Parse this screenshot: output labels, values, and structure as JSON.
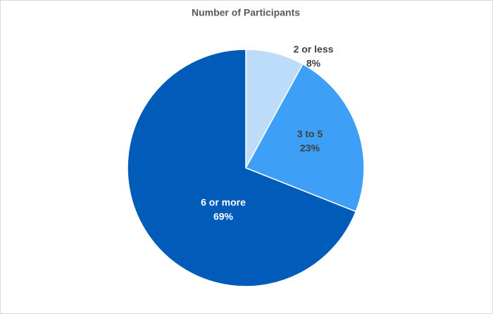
{
  "chart_data": {
    "type": "pie",
    "title": "Number of Participants",
    "categories": [
      "2 or less",
      "3 to 5",
      "6 or more"
    ],
    "values": [
      8,
      23,
      69
    ],
    "value_labels": [
      "8%",
      "23%",
      "69%"
    ],
    "colors": [
      "#bddcfa",
      "#3d9ff5",
      "#005cb8"
    ]
  }
}
